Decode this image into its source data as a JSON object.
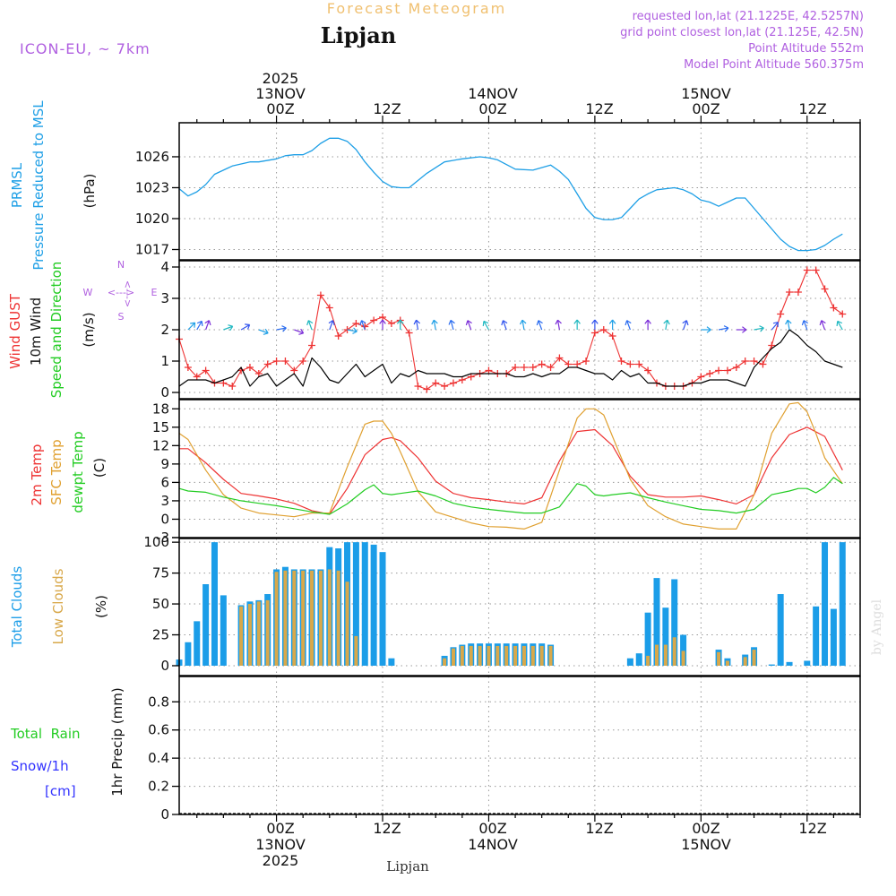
{
  "header": {
    "super_title": "Forecast Meteogram",
    "location": "Lipjan",
    "model": "ICON-EU, ~ 7km",
    "requested": "requested lon,lat (21.1225E, 42.5257N)",
    "grid_point": "grid point closest lon,lat (21.125E, 42.5N)",
    "point_altitude": "Point Altitude 552m",
    "model_altitude": "Model Point Altitude 560.375m",
    "footer_location": "Lipjan",
    "watermark": "by Angel"
  },
  "time_axis": {
    "year": "2025",
    "top_labels": [
      {
        "hour": 0,
        "time": "00Z",
        "date": "13NOV",
        "year": "2025"
      },
      {
        "hour": 12,
        "time": "12Z"
      },
      {
        "hour": 24,
        "time": "00Z",
        "date": "14NOV"
      },
      {
        "hour": 36,
        "time": "12Z"
      },
      {
        "hour": 48,
        "time": "00Z",
        "date": "15NOV"
      },
      {
        "hour": 60,
        "time": "12Z"
      }
    ],
    "range_hours": [
      -11,
      66
    ]
  },
  "colors": {
    "pressure": "#1e9fe6",
    "gust": "#ee3333",
    "wind": "#000000",
    "t2m": "#ee3333",
    "tsfc": "#e0a030",
    "dewpt": "#22cc22",
    "total_clouds": "#1b9de8",
    "low_clouds": "#d8a84a",
    "rain": "#22cc22",
    "snow": "#3333ff",
    "header_purple": "#b060e0",
    "super_title": "#f0c070"
  },
  "chart_data": [
    {
      "id": "pressure",
      "type": "line",
      "ylabel_lines": [
        "PRMSL",
        "Pressure Reduced to MSL"
      ],
      "unit": "(hPa)",
      "yticks": [
        1017,
        1020,
        1023,
        1026
      ],
      "ylim": [
        1016,
        1029.3
      ],
      "series": [
        {
          "name": "PRMSL",
          "x": [
            -11,
            -10,
            -9,
            -8,
            -7,
            -5,
            -3,
            -2,
            0,
            1,
            2,
            3,
            4,
            5,
            6,
            7,
            8,
            9,
            10,
            11,
            12,
            13,
            14,
            15,
            17,
            19,
            21,
            23,
            24,
            25,
            27,
            29,
            31,
            32,
            33,
            34,
            35,
            36,
            37,
            38,
            39,
            40,
            41,
            42,
            43,
            45,
            46,
            47,
            48,
            49,
            50,
            51,
            52,
            53,
            55,
            56,
            57,
            58,
            59,
            60,
            61,
            62,
            63,
            64
          ],
          "values": [
            1022.9,
            1022.2,
            1022.6,
            1023.3,
            1024.3,
            1025.1,
            1025.5,
            1025.5,
            1025.8,
            1026.1,
            1026.2,
            1026.2,
            1026.6,
            1027.3,
            1027.8,
            1027.8,
            1027.5,
            1026.7,
            1025.5,
            1024.5,
            1023.6,
            1023.1,
            1023.0,
            1023.0,
            1024.4,
            1025.5,
            1025.8,
            1026.0,
            1025.9,
            1025.7,
            1024.8,
            1024.7,
            1025.2,
            1024.6,
            1023.8,
            1022.4,
            1021.0,
            1020.1,
            1019.9,
            1019.9,
            1020.1,
            1021.0,
            1021.9,
            1022.4,
            1022.8,
            1023.0,
            1022.8,
            1022.4,
            1021.8,
            1021.6,
            1021.2,
            1021.6,
            1022.0,
            1022.0,
            1020.0,
            1019.0,
            1018.0,
            1017.3,
            1016.9,
            1016.9,
            1017.0,
            1017.4,
            1018.0,
            1018.5
          ]
        }
      ]
    },
    {
      "id": "wind",
      "type": "line",
      "ylabel_lines": [
        "Wind GUST",
        "10m Wind",
        "Speed and Direction"
      ],
      "unit": "(m/s)",
      "compass": {
        "n": "N",
        "s": "S",
        "w": "W",
        "e": "E",
        "arrow": "<--->"
      },
      "yticks": [
        0,
        1,
        2,
        3,
        4
      ],
      "ylim": [
        -0.2,
        4.2
      ],
      "series": [
        {
          "name": "Wind GUST",
          "x": [
            -11,
            -10,
            -9,
            -8,
            -7,
            -6,
            -5,
            -4,
            -3,
            -2,
            -1,
            0,
            1,
            2,
            3,
            4,
            5,
            6,
            7,
            8,
            9,
            10,
            11,
            12,
            13,
            14,
            15,
            16,
            17,
            18,
            19,
            20,
            21,
            22,
            23,
            24,
            25,
            26,
            27,
            28,
            29,
            30,
            31,
            32,
            33,
            34,
            35,
            36,
            37,
            38,
            39,
            40,
            41,
            42,
            43,
            44,
            45,
            46,
            47,
            48,
            49,
            50,
            51,
            52,
            53,
            54,
            55,
            56,
            57,
            58,
            59,
            60,
            61,
            62,
            63,
            64
          ],
          "values": [
            1.7,
            0.8,
            0.5,
            0.7,
            0.3,
            0.3,
            0.2,
            0.7,
            0.8,
            0.6,
            0.9,
            1.0,
            1.0,
            0.7,
            1.0,
            1.5,
            3.1,
            2.7,
            1.8,
            2.0,
            2.2,
            2.1,
            2.3,
            2.4,
            2.2,
            2.3,
            1.9,
            0.2,
            0.1,
            0.3,
            0.2,
            0.3,
            0.4,
            0.5,
            0.6,
            0.7,
            0.6,
            0.6,
            0.8,
            0.8,
            0.8,
            0.9,
            0.8,
            1.1,
            0.9,
            0.9,
            1.0,
            1.9,
            2.0,
            1.8,
            1.0,
            0.9,
            0.9,
            0.7,
            0.3,
            0.2,
            0.2,
            0.2,
            0.3,
            0.5,
            0.6,
            0.7,
            0.7,
            0.8,
            1.0,
            1.0,
            0.9,
            1.5,
            2.5,
            3.2,
            3.2,
            3.9,
            3.9,
            3.3,
            2.7,
            2.5
          ]
        },
        {
          "name": "10m Wind",
          "x": [
            -11,
            -10,
            -9,
            -8,
            -7,
            -6,
            -5,
            -4,
            -3,
            -2,
            -1,
            0,
            1,
            2,
            3,
            4,
            5,
            6,
            7,
            8,
            9,
            10,
            11,
            12,
            13,
            14,
            15,
            16,
            17,
            18,
            19,
            20,
            21,
            22,
            23,
            24,
            25,
            26,
            27,
            28,
            29,
            30,
            31,
            32,
            33,
            34,
            35,
            36,
            37,
            38,
            39,
            40,
            41,
            42,
            43,
            44,
            45,
            46,
            47,
            48,
            49,
            50,
            51,
            52,
            53,
            54,
            55,
            56,
            57,
            58,
            59,
            60,
            61,
            62,
            63,
            64
          ],
          "values": [
            0.2,
            0.4,
            0.4,
            0.4,
            0.3,
            0.4,
            0.5,
            0.8,
            0.2,
            0.5,
            0.6,
            0.2,
            0.4,
            0.6,
            0.2,
            1.1,
            0.8,
            0.4,
            0.3,
            0.6,
            0.9,
            0.5,
            0.7,
            0.9,
            0.3,
            0.6,
            0.5,
            0.7,
            0.6,
            0.6,
            0.6,
            0.5,
            0.5,
            0.6,
            0.6,
            0.6,
            0.6,
            0.6,
            0.5,
            0.5,
            0.6,
            0.5,
            0.6,
            0.6,
            0.8,
            0.8,
            0.7,
            0.6,
            0.6,
            0.4,
            0.7,
            0.5,
            0.6,
            0.3,
            0.3,
            0.2,
            0.2,
            0.2,
            0.3,
            0.3,
            0.4,
            0.4,
            0.4,
            0.3,
            0.2,
            0.8,
            1.1,
            1.4,
            1.6,
            2.0,
            1.8,
            1.5,
            1.3,
            1.0,
            0.9,
            0.8
          ]
        }
      ],
      "barbs": {
        "x": [
          -10,
          -9,
          -8,
          -6,
          -4,
          -2,
          0,
          2,
          4,
          6,
          8,
          10,
          12,
          14,
          16,
          18,
          20,
          22,
          24,
          26,
          28,
          30,
          32,
          34,
          36,
          38,
          40,
          42,
          44,
          46,
          48,
          50,
          52,
          54,
          56,
          58,
          60,
          62,
          64
        ],
        "dir": [
          135,
          150,
          160,
          110,
          120,
          70,
          100,
          70,
          200,
          160,
          80,
          200,
          180,
          180,
          190,
          190,
          195,
          200,
          210,
          200,
          190,
          200,
          190,
          180,
          180,
          180,
          200,
          180,
          170,
          160,
          90,
          100,
          90,
          100,
          140,
          190,
          200,
          200,
          210
        ]
      }
    },
    {
      "id": "temperature",
      "type": "line",
      "ylabel_lines": [
        "2m Temp",
        "SFC Temp",
        "dewpt Temp"
      ],
      "unit": "(C)",
      "yticks": [
        -3,
        0,
        3,
        6,
        9,
        12,
        15,
        18
      ],
      "ylim": [
        -3,
        19.5
      ],
      "series": [
        {
          "name": "2m Temp",
          "x": [
            -11,
            -10,
            -8,
            -6,
            -4,
            -2,
            0,
            2,
            4,
            6,
            8,
            10,
            12,
            13,
            14,
            16,
            18,
            20,
            22,
            24,
            26,
            28,
            30,
            32,
            34,
            36,
            38,
            40,
            42,
            44,
            46,
            48,
            50,
            52,
            54,
            56,
            58,
            60,
            62,
            64
          ],
          "values": [
            11.5,
            11.5,
            9.2,
            6.5,
            4.2,
            3.8,
            3.3,
            2.6,
            1.4,
            0.8,
            5.0,
            10.5,
            13.0,
            13.3,
            12.8,
            10.0,
            6.2,
            4.2,
            3.5,
            3.2,
            2.8,
            2.5,
            3.5,
            9.5,
            14.3,
            14.6,
            12.0,
            7.0,
            4.0,
            3.6,
            3.6,
            3.8,
            3.2,
            2.5,
            4.0,
            10.0,
            13.8,
            15.0,
            13.5,
            8.0
          ]
        },
        {
          "name": "SFC Temp",
          "x": [
            -11,
            -10,
            -8,
            -6,
            -4,
            -2,
            0,
            2,
            4,
            6,
            8,
            10,
            11,
            12,
            13,
            14,
            16,
            18,
            20,
            22,
            24,
            26,
            28,
            30,
            32,
            34,
            35,
            36,
            37,
            38,
            40,
            42,
            44,
            46,
            48,
            50,
            52,
            54,
            56,
            58,
            59,
            60,
            61,
            62,
            64
          ],
          "values": [
            14.0,
            13.0,
            8.0,
            4.0,
            1.8,
            1.0,
            0.7,
            0.4,
            1.0,
            1.0,
            8.5,
            15.5,
            16.0,
            16.0,
            14.0,
            11.0,
            4.5,
            1.2,
            0.3,
            -0.6,
            -1.2,
            -1.3,
            -1.6,
            -0.5,
            8.0,
            16.5,
            18.0,
            18.0,
            17.0,
            13.5,
            6.5,
            2.2,
            0.4,
            -0.8,
            -1.2,
            -1.6,
            -1.6,
            4.0,
            14.0,
            18.8,
            19.0,
            17.5,
            14.0,
            10.0,
            5.8
          ]
        },
        {
          "name": "dewpt Temp",
          "x": [
            -11,
            -10,
            -8,
            -6,
            -4,
            -2,
            0,
            2,
            4,
            6,
            8,
            10,
            11,
            12,
            13,
            14,
            16,
            18,
            20,
            22,
            24,
            26,
            28,
            30,
            32,
            34,
            35,
            36,
            37,
            38,
            40,
            42,
            44,
            46,
            48,
            50,
            52,
            54,
            56,
            58,
            59,
            60,
            61,
            62,
            63,
            64
          ],
          "values": [
            5.0,
            4.6,
            4.4,
            3.6,
            3.0,
            2.6,
            2.2,
            1.7,
            1.2,
            0.8,
            2.5,
            4.8,
            5.6,
            4.2,
            4.0,
            4.2,
            4.6,
            3.8,
            2.6,
            2.0,
            1.6,
            1.3,
            1.0,
            1.0,
            2.0,
            5.8,
            5.4,
            4.0,
            3.8,
            4.0,
            4.3,
            3.5,
            2.8,
            2.2,
            1.6,
            1.4,
            1.0,
            1.6,
            4.0,
            4.6,
            5.0,
            5.0,
            4.3,
            5.2,
            6.8,
            5.8
          ]
        }
      ]
    },
    {
      "id": "clouds",
      "type": "bar",
      "ylabel_lines": [
        "Total Clouds",
        "Low Clouds"
      ],
      "unit": "(%)",
      "yticks": [
        0,
        25,
        50,
        75,
        100
      ],
      "ylim": [
        -8,
        103
      ],
      "x": [
        -11,
        -10,
        -9,
        -8,
        -7,
        -6,
        -5,
        -4,
        -3,
        -2,
        -1,
        0,
        1,
        2,
        3,
        4,
        5,
        6,
        7,
        8,
        9,
        10,
        11,
        12,
        13,
        14,
        15,
        16,
        17,
        18,
        19,
        20,
        21,
        22,
        23,
        24,
        25,
        26,
        27,
        28,
        29,
        30,
        31,
        32,
        33,
        34,
        35,
        36,
        37,
        38,
        39,
        40,
        41,
        42,
        43,
        44,
        45,
        46,
        47,
        48,
        49,
        50,
        51,
        52,
        53,
        54,
        55,
        56,
        57,
        58,
        59,
        60,
        61,
        62,
        63,
        64
      ],
      "total": [
        5,
        19,
        36,
        66,
        100,
        57,
        0,
        49,
        52,
        53,
        58,
        78,
        80,
        78,
        78,
        78,
        78,
        96,
        95,
        100,
        100,
        100,
        98,
        92,
        6,
        0,
        0,
        0,
        0,
        0,
        8,
        15,
        17,
        18,
        18,
        18,
        18,
        18,
        18,
        18,
        18,
        18,
        17,
        0,
        0,
        0,
        0,
        0,
        0,
        0,
        0,
        6,
        10,
        43,
        71,
        47,
        70,
        25,
        0,
        0,
        0,
        13,
        6,
        0,
        9,
        15,
        0,
        1,
        58,
        3,
        0,
        4,
        48,
        100,
        46,
        100
      ],
      "low": [
        0,
        0,
        0,
        0,
        0,
        0,
        0,
        48,
        50,
        52,
        53,
        76,
        77,
        77,
        77,
        77,
        77,
        78,
        77,
        68,
        24,
        0,
        0,
        0,
        0,
        0,
        0,
        0,
        0,
        0,
        6,
        14,
        16,
        16,
        16,
        16,
        16,
        16,
        16,
        16,
        16,
        16,
        16,
        0,
        0,
        0,
        0,
        0,
        0,
        0,
        0,
        0,
        0,
        8,
        17,
        17,
        23,
        12,
        0,
        0,
        0,
        11,
        4,
        0,
        7,
        13,
        0,
        0,
        0,
        0,
        0,
        0,
        0,
        0,
        0,
        0
      ]
    },
    {
      "id": "precip",
      "type": "bar",
      "ylabel_lines": [
        "1hr Precip (mm)"
      ],
      "legend_rain": "Total  Rain",
      "legend_snow": "Snow/1h",
      "legend_snow_unit": "[cm]",
      "yticks": [
        0,
        0.2,
        0.4,
        0.6,
        0.8
      ],
      "ylim": [
        0,
        0.98
      ],
      "rain": [],
      "snow": []
    }
  ]
}
